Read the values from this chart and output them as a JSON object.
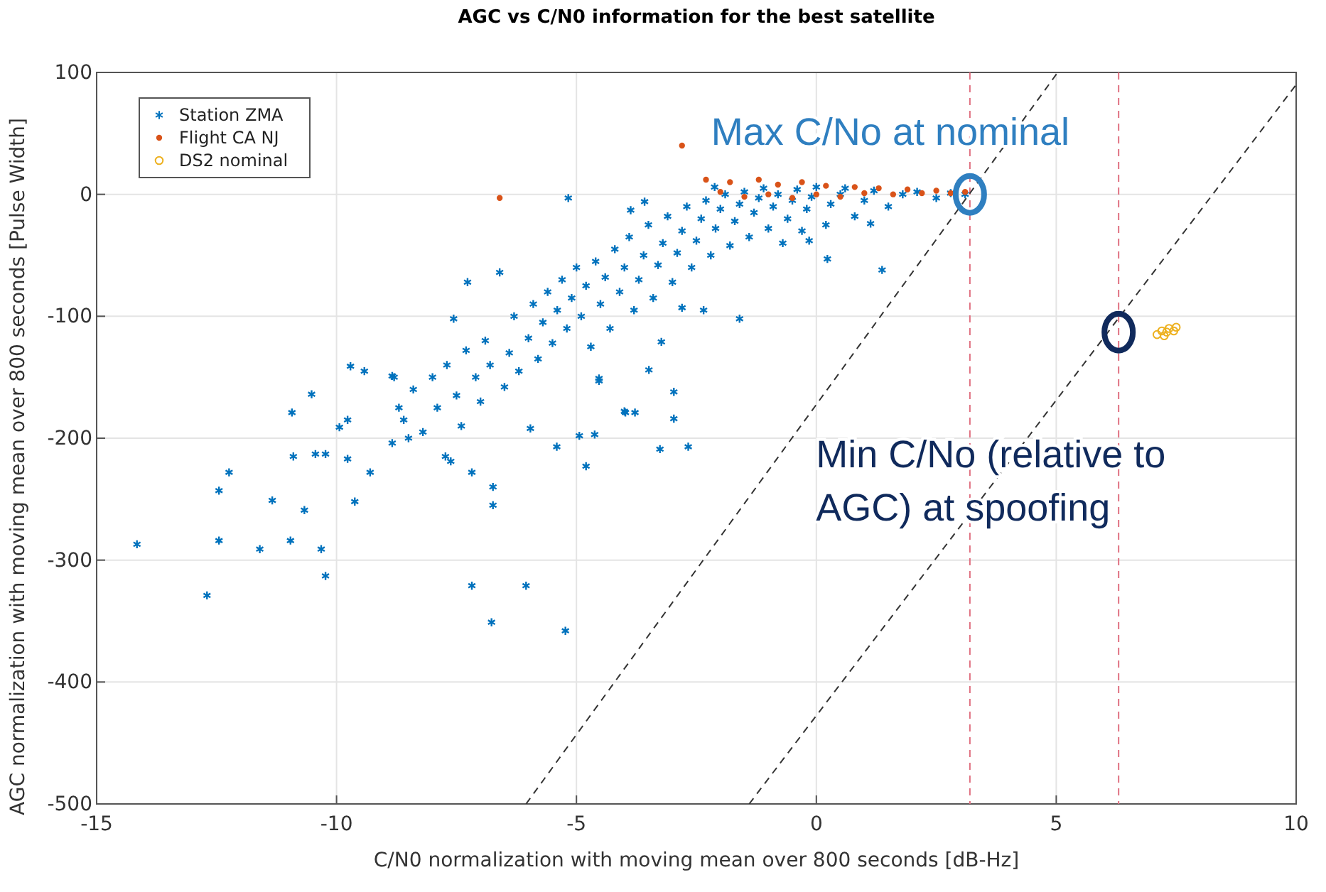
{
  "chart_data": {
    "type": "scatter",
    "title": "AGC vs C/N0 information for the best satellite",
    "xlabel": "C/N0 normalization with moving mean over 800 seconds [dB-Hz]",
    "ylabel": "AGC normalization with moving mean over 800 seconds [Pulse Width]",
    "xlim": [
      -15,
      10
    ],
    "ylim": [
      -500,
      100
    ],
    "xticks": [
      -15,
      -10,
      -5,
      0,
      5,
      10
    ],
    "yticks": [
      -500,
      -400,
      -300,
      -200,
      -100,
      0,
      100
    ],
    "grid": true,
    "legend": "top left",
    "series": [
      {
        "name": "Station ZMA",
        "color": "#0072bd",
        "marker": "cross",
        "x": [
          -14.16,
          -12.7,
          -12.45,
          -12.45,
          -12.24,
          -11.6,
          -11.34,
          -10.96,
          -10.93,
          -10.9,
          -10.67,
          -10.52,
          -10.44,
          -10.32,
          -10.23,
          -10.23,
          -9.94,
          -9.77,
          -9.77,
          -9.71,
          -9.62,
          -9.42,
          -9.3,
          -8.84,
          -8.84,
          -8.8,
          -8.7,
          -8.6,
          -8.5,
          -8.4,
          -8.2,
          -8.0,
          -7.9,
          -7.73,
          -7.7,
          -7.62,
          -7.56,
          -7.5,
          -7.4,
          -7.3,
          -7.27,
          -7.18,
          -7.18,
          -7.1,
          -7.0,
          -6.9,
          -6.8,
          -6.77,
          -6.74,
          -6.74,
          -6.6,
          -6.5,
          -6.4,
          -6.3,
          -6.2,
          -6.05,
          -6.0,
          -5.96,
          -5.9,
          -5.8,
          -5.7,
          -5.6,
          -5.5,
          -5.41,
          -5.4,
          -5.3,
          -5.23,
          -5.2,
          -5.17,
          -5.1,
          -5.0,
          -4.94,
          -4.9,
          -4.8,
          -4.8,
          -4.7,
          -4.62,
          -4.6,
          -4.53,
          -4.53,
          -4.5,
          -4.4,
          -4.3,
          -4.2,
          -4.1,
          -4.0,
          -4.0,
          -3.98,
          -3.9,
          -3.87,
          -3.8,
          -3.78,
          -3.7,
          -3.6,
          -3.58,
          -3.5,
          -3.49,
          -3.4,
          -3.3,
          -3.26,
          -3.23,
          -3.2,
          -3.1,
          -3.0,
          -2.97,
          -2.97,
          -2.9,
          -2.8,
          -2.8,
          -2.7,
          -2.67,
          -2.6,
          -2.5,
          -2.4,
          -2.35,
          -2.3,
          -2.2,
          -2.12,
          -2.1,
          -2.0,
          -1.9,
          -1.8,
          -1.7,
          -1.6,
          -1.6,
          -1.5,
          -1.4,
          -1.3,
          -1.2,
          -1.1,
          -1.0,
          -0.9,
          -0.8,
          -0.7,
          -0.6,
          -0.5,
          -0.4,
          -0.3,
          -0.2,
          -0.15,
          -0.1,
          0,
          0.2,
          0.23,
          0.3,
          0.5,
          0.6,
          0.8,
          1.0,
          1.13,
          1.2,
          1.37,
          1.5,
          1.8,
          2.1,
          2.5,
          2.8,
          3.1
        ],
        "values": [
          -287,
          -329,
          -243,
          -284,
          -228,
          -291,
          -251,
          -284,
          -179,
          -215,
          -259,
          -164,
          -213,
          -291,
          -213,
          -313,
          -191,
          -185,
          -217,
          -141,
          -252,
          -145,
          -228,
          -149,
          -204,
          -150,
          -175,
          -185,
          -200,
          -160,
          -195,
          -150,
          -175,
          -215,
          -140,
          -219,
          -102,
          -165,
          -190,
          -128,
          -72,
          -228,
          -321,
          -150,
          -170,
          -120,
          -140,
          -351,
          -240,
          -255,
          -64,
          -158,
          -130,
          -100,
          -145,
          -321,
          -118,
          -192,
          -90,
          -135,
          -105,
          -80,
          -122,
          -207,
          -95,
          -70,
          -358,
          -110,
          -3,
          -85,
          -60,
          -198,
          -100,
          -75,
          -223,
          -125,
          -197,
          -55,
          -153,
          -151,
          -90,
          -68,
          -110,
          -45,
          -80,
          -60,
          -178,
          -179,
          -35,
          -13,
          -95,
          -179,
          -70,
          -50,
          -6,
          -25,
          -144,
          -85,
          -58,
          -209,
          -121,
          -40,
          -18,
          -72,
          -162,
          -184,
          -48,
          -30,
          -93,
          -10,
          -207,
          -60,
          -38,
          -20,
          -95,
          -5,
          -50,
          6,
          -28,
          -12,
          0,
          -42,
          -22,
          -8,
          -102,
          2,
          -35,
          -15,
          -3,
          5,
          -28,
          -10,
          0,
          -40,
          -20,
          -5,
          4,
          -30,
          -12,
          -38,
          -2,
          6,
          -25,
          -53,
          -8,
          0,
          5,
          -18,
          -5,
          -24,
          3,
          -62,
          -10,
          0,
          2,
          -3,
          1,
          0
        ]
      },
      {
        "name": "Flight CA NJ",
        "color": "#d95319",
        "marker": "circle",
        "x": [
          -6.6,
          -2.8,
          -2.3,
          -2.0,
          -1.8,
          -1.5,
          -1.2,
          -1.0,
          -0.8,
          -0.5,
          -0.3,
          0,
          0.2,
          0.5,
          0.8,
          1.0,
          1.3,
          1.6,
          1.9,
          2.2,
          2.5,
          2.8,
          3.1
        ],
        "values": [
          -3,
          40,
          12,
          2,
          10,
          -2,
          12,
          0,
          8,
          -3,
          10,
          0,
          7,
          -2,
          6,
          1,
          5,
          0,
          4,
          1,
          3,
          1,
          2
        ]
      },
      {
        "name": "DS2 nominal",
        "color": "#edb120",
        "marker": "circle",
        "x": [
          7.1,
          7.2,
          7.25,
          7.3,
          7.35,
          7.45,
          7.5
        ],
        "values": [
          -115,
          -112,
          -116,
          -113,
          -110,
          -112,
          -109
        ]
      },
      {
        "type": "line",
        "color": "#333333",
        "line_style": "dashed",
        "x": [
          -6.05,
          5.03
        ],
        "values": [
          -500,
          100
        ]
      },
      {
        "type": "line",
        "color": "#333333",
        "line_style": "dashed",
        "x": [
          -1.4,
          10
        ],
        "values": [
          -500,
          90
        ]
      }
    ],
    "ref_lines": [
      {
        "axis": "x",
        "value": 3.2,
        "color": "#e07080",
        "line_style": "dashed"
      },
      {
        "axis": "x",
        "value": 6.3,
        "color": "#e07080",
        "line_style": "dashed"
      }
    ],
    "annotations": [
      {
        "text": "Max C/No at nominal",
        "x": 3.2,
        "y": 0
      },
      {
        "text": "Min C/No (relative to AGC) at spoofing",
        "x": 6.3,
        "y": -113
      }
    ]
  }
}
